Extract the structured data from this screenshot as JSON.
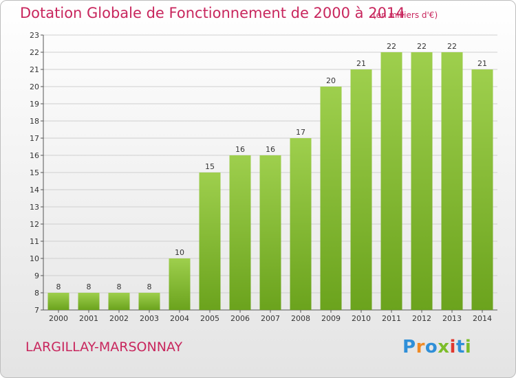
{
  "chart_data": {
    "type": "bar",
    "title": "Dotation Globale de Fonctionnement de 2000 à 2014",
    "subtitle": "(en milliers d'€)",
    "categories": [
      "2000",
      "2001",
      "2002",
      "2003",
      "2004",
      "2005",
      "2006",
      "2007",
      "2008",
      "2009",
      "2010",
      "2011",
      "2012",
      "2013",
      "2014"
    ],
    "values": [
      8,
      8,
      8,
      8,
      10,
      15,
      16,
      16,
      17,
      20,
      21,
      22,
      22,
      22,
      21
    ],
    "ylim": [
      7,
      23
    ],
    "yticks": [
      7,
      8,
      9,
      10,
      11,
      12,
      13,
      14,
      15,
      16,
      17,
      18,
      19,
      20,
      21,
      22,
      23
    ],
    "grid": true,
    "xlabel": "",
    "ylabel": "",
    "bar_color_top": "#9ecf4d",
    "bar_color_bottom": "#6ba31d"
  },
  "footer": {
    "commune": "LARGILLAY-MARSONNAY",
    "brand_letters": [
      {
        "ch": "P",
        "color": "#2f8fd8"
      },
      {
        "ch": "r",
        "color": "#f08a24"
      },
      {
        "ch": "o",
        "color": "#2f8fd8"
      },
      {
        "ch": "x",
        "color": "#7cbd2a"
      },
      {
        "ch": "i",
        "color": "#e0382f"
      },
      {
        "ch": "t",
        "color": "#2f8fd8"
      },
      {
        "ch": "i",
        "color": "#7cbd2a"
      }
    ]
  },
  "colors": {
    "accent": "#c8265d",
    "grid": "#cfcfcf"
  }
}
